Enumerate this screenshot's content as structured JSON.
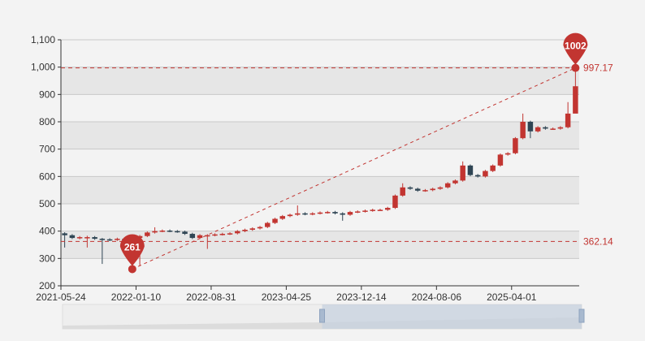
{
  "chart_data": {
    "type": "candlestick",
    "ylim": [
      200,
      1100
    ],
    "yticks": [
      200,
      300,
      400,
      500,
      600,
      700,
      800,
      900,
      1000,
      1100
    ],
    "ytick_labels": [
      "200",
      "300",
      "400",
      "500",
      "600",
      "700",
      "800",
      "900",
      "1,000",
      "1,100"
    ],
    "xtick_labels": [
      "2021-05-24",
      "2022-01-10",
      "2022-08-31",
      "2023-04-25",
      "2023-12-14",
      "2024-08-06",
      "2025-04-01"
    ],
    "xtick_every": 10,
    "grid": "split-area bands",
    "candles_ohlc": [
      [
        392,
        385,
        340,
        396
      ],
      [
        385,
        375,
        371,
        389
      ],
      [
        375,
        378,
        370,
        382
      ],
      [
        378,
        378,
        340,
        383
      ],
      [
        378,
        372,
        368,
        382
      ],
      [
        372,
        370,
        280,
        375
      ],
      [
        370,
        368,
        364,
        374
      ],
      [
        368,
        372,
        364,
        376
      ],
      [
        372,
        370,
        366,
        376
      ],
      [
        370,
        375,
        261,
        379
      ],
      [
        375,
        382,
        275,
        386
      ],
      [
        382,
        395,
        378,
        399
      ],
      [
        395,
        400,
        391,
        414
      ],
      [
        400,
        402,
        396,
        406
      ],
      [
        402,
        400,
        396,
        406
      ],
      [
        400,
        398,
        394,
        404
      ],
      [
        398,
        390,
        386,
        402
      ],
      [
        390,
        375,
        371,
        394
      ],
      [
        375,
        385,
        371,
        389
      ],
      [
        385,
        385,
        335,
        389
      ],
      [
        385,
        388,
        381,
        392
      ],
      [
        388,
        390,
        384,
        394
      ],
      [
        390,
        392,
        386,
        396
      ],
      [
        392,
        400,
        388,
        404
      ],
      [
        400,
        405,
        396,
        409
      ],
      [
        405,
        410,
        401,
        414
      ],
      [
        410,
        415,
        406,
        419
      ],
      [
        415,
        430,
        411,
        434
      ],
      [
        430,
        445,
        426,
        449
      ],
      [
        445,
        455,
        441,
        459
      ],
      [
        455,
        460,
        451,
        464
      ],
      [
        460,
        465,
        456,
        494
      ],
      [
        465,
        462,
        458,
        469
      ],
      [
        462,
        465,
        458,
        469
      ],
      [
        465,
        468,
        461,
        472
      ],
      [
        468,
        470,
        464,
        474
      ],
      [
        470,
        465,
        461,
        474
      ],
      [
        465,
        460,
        438,
        469
      ],
      [
        460,
        470,
        456,
        474
      ],
      [
        470,
        472,
        466,
        476
      ],
      [
        472,
        475,
        468,
        479
      ],
      [
        475,
        478,
        471,
        482
      ],
      [
        478,
        478,
        474,
        482
      ],
      [
        478,
        485,
        474,
        489
      ],
      [
        485,
        530,
        481,
        534
      ],
      [
        530,
        560,
        526,
        575
      ],
      [
        560,
        555,
        551,
        564
      ],
      [
        555,
        548,
        544,
        559
      ],
      [
        548,
        550,
        544,
        554
      ],
      [
        550,
        555,
        546,
        559
      ],
      [
        555,
        560,
        551,
        564
      ],
      [
        560,
        575,
        556,
        579
      ],
      [
        575,
        585,
        571,
        589
      ],
      [
        585,
        640,
        581,
        655
      ],
      [
        640,
        605,
        601,
        644
      ],
      [
        605,
        600,
        596,
        609
      ],
      [
        600,
        620,
        596,
        624
      ],
      [
        620,
        640,
        616,
        644
      ],
      [
        640,
        680,
        636,
        684
      ],
      [
        680,
        685,
        676,
        689
      ],
      [
        685,
        740,
        681,
        744
      ],
      [
        740,
        800,
        736,
        830
      ],
      [
        800,
        765,
        740,
        804
      ],
      [
        765,
        780,
        761,
        784
      ],
      [
        780,
        775,
        771,
        784
      ],
      [
        775,
        775,
        771,
        779
      ],
      [
        775,
        780,
        771,
        784
      ],
      [
        780,
        830,
        776,
        872
      ],
      [
        830,
        930,
        895,
        1002
      ]
    ],
    "up_color": "#c23531",
    "down_color": "#2f4554",
    "mark_points": [
      {
        "label": "1002",
        "value": 1002,
        "candle": 68
      },
      {
        "label": "261",
        "value": 261,
        "candle": 9
      }
    ],
    "mark_lines": [
      {
        "label": "997.17",
        "value": 997.17
      },
      {
        "label": "362.14",
        "value": 362.14
      }
    ],
    "trend_line": {
      "from": "261",
      "to": "1002"
    },
    "data_zoom": {
      "start_percent": 50,
      "end_percent": 100
    }
  }
}
